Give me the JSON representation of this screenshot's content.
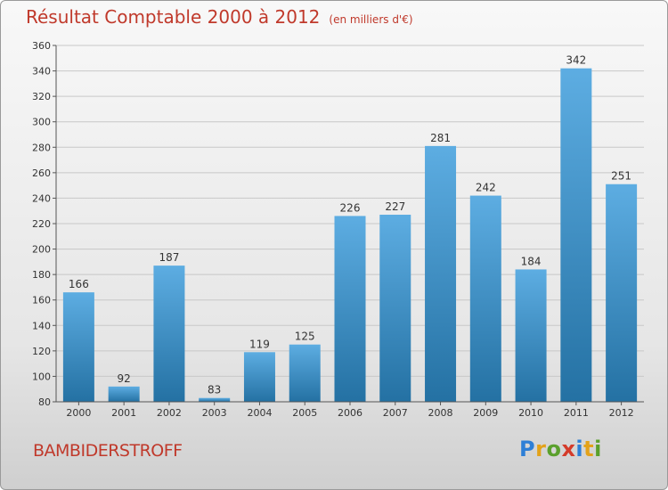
{
  "header": {
    "title": "Résultat Comptable 2000 à 2012",
    "unit": "(en milliers d'€)"
  },
  "footer": {
    "commune": "BAMBIDERSTROFF",
    "logo_letters": [
      {
        "ch": "P",
        "color": "#2e7fd6"
      },
      {
        "ch": "r",
        "color": "#e3a21a"
      },
      {
        "ch": "o",
        "color": "#5aa02c"
      },
      {
        "ch": "x",
        "color": "#d43b2a"
      },
      {
        "ch": "i",
        "color": "#2e7fd6"
      },
      {
        "ch": "t",
        "color": "#e3a21a"
      },
      {
        "ch": "i",
        "color": "#5aa02c"
      }
    ]
  },
  "colors": {
    "bar_top": "#5dade2",
    "bar_bottom": "#2471a3",
    "title": "#c0392b"
  },
  "chart_data": {
    "type": "bar",
    "categories": [
      "2000",
      "2001",
      "2002",
      "2003",
      "2004",
      "2005",
      "2006",
      "2007",
      "2008",
      "2009",
      "2010",
      "2011",
      "2012"
    ],
    "values": [
      166,
      92,
      187,
      83,
      119,
      125,
      226,
      227,
      281,
      242,
      184,
      342,
      251
    ],
    "ylim": [
      80,
      360
    ],
    "yticks": [
      80,
      100,
      120,
      140,
      160,
      180,
      200,
      220,
      240,
      260,
      280,
      300,
      320,
      340,
      360
    ],
    "grid": true
  }
}
